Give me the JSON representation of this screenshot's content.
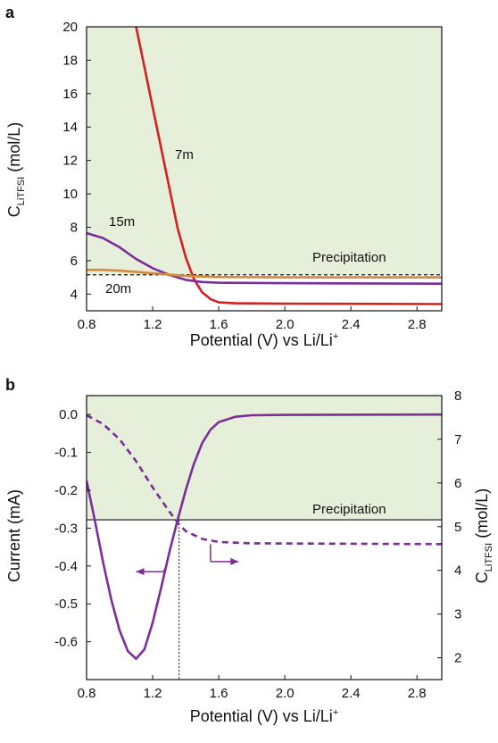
{
  "colors": {
    "shade": "#e6efd9",
    "red": "#d42020",
    "purple": "#7b2d9a",
    "orange": "#d9873a",
    "black": "#111111"
  },
  "chart_data": [
    {
      "panel_label": "a",
      "type": "line",
      "xlabel": "Potential (V) vs Li/Li",
      "xlabel_sup": "+",
      "ylabel_main": "C",
      "ylabel_sub": "LiTFSI",
      "ylabel_unit": " (mol/L)",
      "xlim": [
        0.8,
        2.95
      ],
      "ylim": [
        3,
        20
      ],
      "xticks": [
        "0.8",
        "1.2",
        "1.6",
        "2.0",
        "2.4",
        "2.8"
      ],
      "yticks": [
        "4",
        "6",
        "8",
        "10",
        "12",
        "14",
        "16",
        "18",
        "20"
      ],
      "shaded_region_ymin": 5.15,
      "annotation": "Precipitation",
      "threshold_line": {
        "y": 5.15,
        "style": "dashed"
      },
      "series": [
        {
          "name": "7m",
          "color": "red",
          "points": [
            [
              1.1,
              20
            ],
            [
              1.15,
              17.6
            ],
            [
              1.2,
              15.2
            ],
            [
              1.25,
              12.8
            ],
            [
              1.3,
              10.4
            ],
            [
              1.35,
              8.0
            ],
            [
              1.4,
              6.2
            ],
            [
              1.45,
              4.9
            ],
            [
              1.5,
              4.1
            ],
            [
              1.55,
              3.7
            ],
            [
              1.6,
              3.5
            ],
            [
              1.7,
              3.45
            ],
            [
              2.0,
              3.43
            ],
            [
              2.95,
              3.4
            ]
          ]
        },
        {
          "name": "15m",
          "color": "purple",
          "points": [
            [
              0.8,
              7.65
            ],
            [
              0.9,
              7.35
            ],
            [
              1.0,
              6.8
            ],
            [
              1.1,
              6.1
            ],
            [
              1.2,
              5.55
            ],
            [
              1.3,
              5.15
            ],
            [
              1.4,
              4.85
            ],
            [
              1.5,
              4.72
            ],
            [
              1.6,
              4.68
            ],
            [
              2.0,
              4.65
            ],
            [
              2.95,
              4.62
            ]
          ]
        },
        {
          "name": "20m",
          "color": "orange",
          "points": [
            [
              0.8,
              5.45
            ],
            [
              0.9,
              5.45
            ],
            [
              1.0,
              5.4
            ],
            [
              1.2,
              5.25
            ],
            [
              1.4,
              5.08
            ],
            [
              1.6,
              5.02
            ],
            [
              2.0,
              5.0
            ],
            [
              2.95,
              5.0
            ]
          ]
        }
      ]
    },
    {
      "panel_label": "b",
      "type": "line",
      "xlabel": "Potential (V) vs Li/Li",
      "xlabel_sup": "+",
      "ylabel_left": "Current (mA)",
      "ylabel_right_main": "C",
      "ylabel_right_sub": "LiTFSI",
      "ylabel_right_unit": " (mol/L)",
      "xlim": [
        0.8,
        2.95
      ],
      "ylim_left": [
        -0.7,
        0.05
      ],
      "ylim_right": [
        1.5,
        8
      ],
      "xticks": [
        "0.8",
        "1.2",
        "1.6",
        "2.0",
        "2.4",
        "2.8"
      ],
      "yticks_left": [
        "0.0",
        "-0.1",
        "-0.2",
        "-0.3",
        "-0.4",
        "-0.5",
        "-0.6"
      ],
      "yticks_right": [
        "2",
        "3",
        "4",
        "5",
        "6",
        "7",
        "8"
      ],
      "annotation": "Precipitation",
      "threshold_line": {
        "y_left": -0.278
      },
      "crossing_x": 1.36,
      "series": [
        {
          "name": "Current",
          "axis": "left",
          "style": "solid",
          "color": "purple",
          "points": [
            [
              0.8,
              -0.175
            ],
            [
              0.85,
              -0.28
            ],
            [
              0.9,
              -0.39
            ],
            [
              0.95,
              -0.49
            ],
            [
              1.0,
              -0.57
            ],
            [
              1.05,
              -0.625
            ],
            [
              1.1,
              -0.645
            ],
            [
              1.15,
              -0.62
            ],
            [
              1.2,
              -0.55
            ],
            [
              1.25,
              -0.46
            ],
            [
              1.3,
              -0.365
            ],
            [
              1.35,
              -0.28
            ],
            [
              1.4,
              -0.2
            ],
            [
              1.45,
              -0.13
            ],
            [
              1.5,
              -0.075
            ],
            [
              1.55,
              -0.04
            ],
            [
              1.6,
              -0.02
            ],
            [
              1.7,
              -0.006
            ],
            [
              1.8,
              -0.002
            ],
            [
              2.0,
              -0.001
            ],
            [
              2.95,
              0.0
            ]
          ]
        },
        {
          "name": "Concentration",
          "axis": "right",
          "style": "dashed",
          "color": "purple",
          "points": [
            [
              0.8,
              7.55
            ],
            [
              0.9,
              7.35
            ],
            [
              1.0,
              7.0
            ],
            [
              1.1,
              6.5
            ],
            [
              1.2,
              5.9
            ],
            [
              1.3,
              5.35
            ],
            [
              1.36,
              5.05
            ],
            [
              1.4,
              4.9
            ],
            [
              1.5,
              4.72
            ],
            [
              1.6,
              4.65
            ],
            [
              1.8,
              4.62
            ],
            [
              2.95,
              4.6
            ]
          ]
        }
      ],
      "arrows": [
        {
          "axis": "left",
          "from_x": 1.27,
          "to_x": 1.1,
          "y": -0.415
        },
        {
          "axis": "right",
          "from_x": 1.55,
          "to_x": 1.72,
          "y": 4.2
        }
      ]
    }
  ]
}
